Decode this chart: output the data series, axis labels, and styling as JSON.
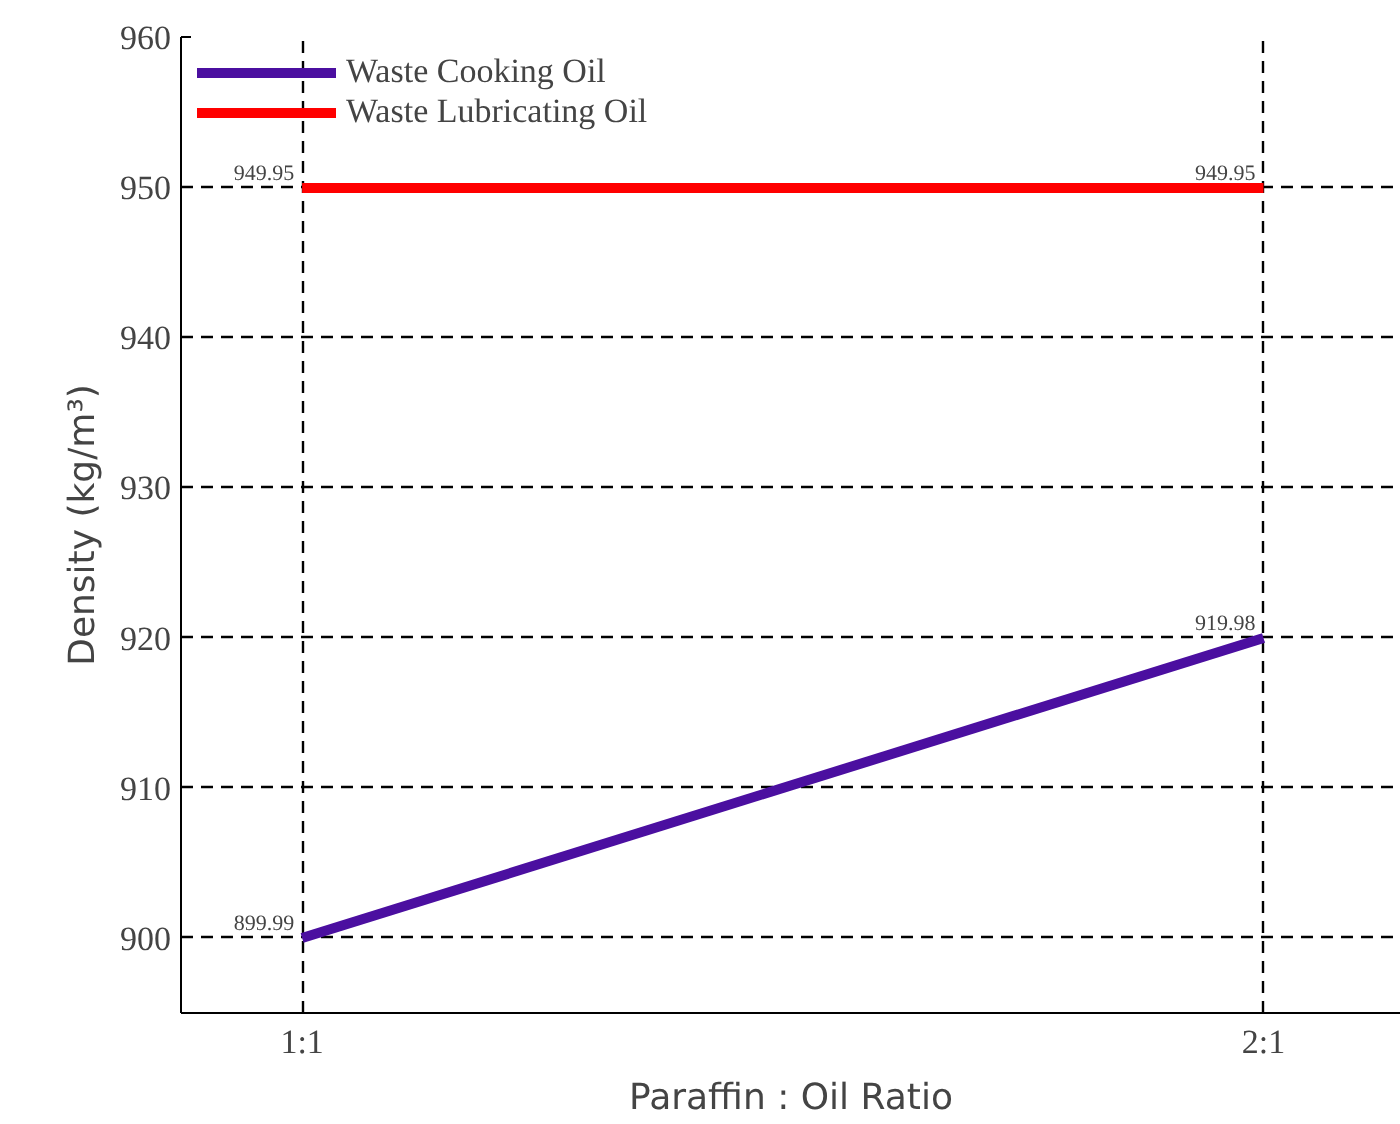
{
  "chart_data": {
    "type": "line",
    "xlabel": "Paraffin : Oil Ratio",
    "ylabel": "Density (kg/m³)",
    "categories": [
      "1:1",
      "2:1"
    ],
    "series": [
      {
        "name": "Waste Cooking Oil",
        "color": "#4b0fa0",
        "values": [
          899.99,
          919.98
        ]
      },
      {
        "name": "Waste Lubricating Oil",
        "color": "#ff0000",
        "values": [
          949.95,
          949.95
        ]
      }
    ],
    "ylim": [
      895,
      960
    ],
    "yticks": [
      900,
      910,
      920,
      930,
      940,
      950,
      960
    ],
    "grid": true,
    "legend": "top left",
    "data_labels": true,
    "line_style": "solid",
    "marker": "none"
  }
}
